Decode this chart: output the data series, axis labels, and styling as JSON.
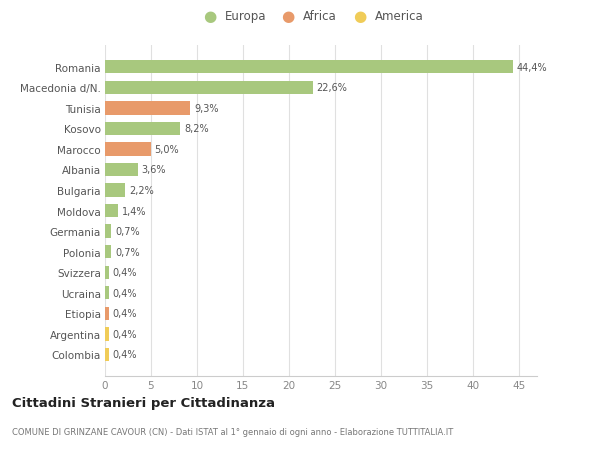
{
  "categories": [
    "Colombia",
    "Argentina",
    "Etiopia",
    "Ucraina",
    "Svizzera",
    "Polonia",
    "Germania",
    "Moldova",
    "Bulgaria",
    "Albania",
    "Marocco",
    "Kosovo",
    "Tunisia",
    "Macedonia d/N.",
    "Romania"
  ],
  "values": [
    0.4,
    0.4,
    0.4,
    0.4,
    0.4,
    0.7,
    0.7,
    1.4,
    2.2,
    3.6,
    5.0,
    8.2,
    9.3,
    22.6,
    44.4
  ],
  "labels": [
    "0,4%",
    "0,4%",
    "0,4%",
    "0,4%",
    "0,4%",
    "0,7%",
    "0,7%",
    "1,4%",
    "2,2%",
    "3,6%",
    "5,0%",
    "8,2%",
    "9,3%",
    "22,6%",
    "44,4%"
  ],
  "continent": [
    "America",
    "America",
    "Africa",
    "Europa",
    "Europa",
    "Europa",
    "Europa",
    "Europa",
    "Europa",
    "Europa",
    "Africa",
    "Europa",
    "Africa",
    "Europa",
    "Europa"
  ],
  "colors": {
    "Europa": "#a8c87e",
    "Africa": "#e89a6a",
    "America": "#f0cc58"
  },
  "legend_labels": [
    "Europa",
    "Africa",
    "America"
  ],
  "legend_colors": [
    "#a8c87e",
    "#e89a6a",
    "#f0cc58"
  ],
  "xlim": [
    0,
    47
  ],
  "xticks": [
    0,
    5,
    10,
    15,
    20,
    25,
    30,
    35,
    40,
    45
  ],
  "title": "Cittadini Stranieri per Cittadinanza",
  "subtitle": "COMUNE DI GRINZANE CAVOUR (CN) - Dati ISTAT al 1° gennaio di ogni anno - Elaborazione TUTTITALIA.IT",
  "bg_color": "#ffffff",
  "grid_color": "#e0e0e0"
}
